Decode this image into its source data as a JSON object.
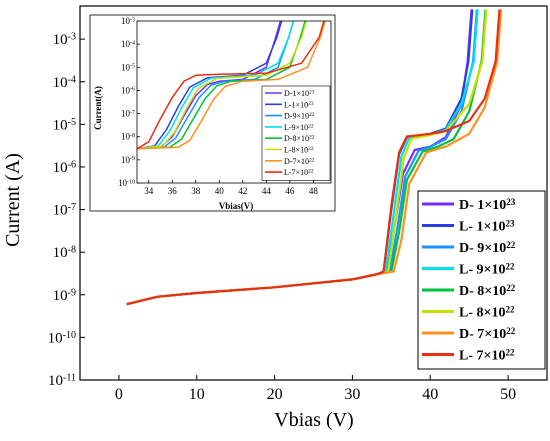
{
  "chart_data": [
    {
      "type": "line",
      "xlabel": "Vbias (V)",
      "ylabel": "Current (A)",
      "xlim": [
        -5,
        55
      ],
      "ylim": [
        1e-11,
        0.006
      ],
      "y_scale": "log",
      "x_ticks": [
        0,
        10,
        20,
        30,
        40,
        50
      ],
      "x_tick_labels": [
        "0",
        "10",
        "20",
        "30",
        "40",
        "50"
      ],
      "y_ticks": [
        1e-11,
        1e-10,
        1e-09,
        1e-08,
        1e-07,
        1e-06,
        1e-05,
        0.0001,
        0.001
      ],
      "y_tick_exponents": [
        "-11",
        "-10",
        "-9",
        "-8",
        "-7",
        "-6",
        "-5",
        "-4",
        "-3"
      ],
      "legend_position": "right",
      "series": [
        {
          "name": "D- 1×10",
          "exp": "23",
          "color": "#7a2cff",
          "x": [
            1,
            5,
            10,
            20,
            30,
            33,
            34.5,
            35.5,
            36.5,
            38,
            40,
            42,
            44,
            44.8,
            45.3
          ],
          "y": [
            6e-10,
            9e-10,
            1.1e-09,
            1.5e-09,
            2.3e-09,
            3e-09,
            3.5e-09,
            5e-08,
            7e-07,
            2.5e-06,
            3e-06,
            5e-06,
            3e-05,
            0.0003,
            0.005
          ]
        },
        {
          "name": "L- 1×10",
          "exp": "23",
          "color": "#2a40e0",
          "x": [
            1,
            5,
            10,
            20,
            30,
            33,
            34,
            35,
            36,
            37,
            40,
            42,
            44,
            44.9,
            45.4
          ],
          "y": [
            6e-10,
            9e-10,
            1.1e-09,
            1.5e-09,
            2.3e-09,
            3e-09,
            3.5e-09,
            1e-07,
            2e-06,
            5e-06,
            6e-06,
            8e-06,
            4e-05,
            0.0003,
            0.005
          ]
        },
        {
          "name": "D- 9×10",
          "exp": "22",
          "color": "#1e90ff",
          "x": [
            1,
            5,
            10,
            20,
            30,
            33,
            34.8,
            35.8,
            36.8,
            38.5,
            40,
            42,
            44,
            45.5,
            46
          ],
          "y": [
            6e-10,
            9e-10,
            1.1e-09,
            1.5e-09,
            2.3e-09,
            3e-09,
            3.5e-09,
            4e-08,
            6e-07,
            2.4e-06,
            3e-06,
            4.5e-06,
            2e-05,
            0.0003,
            0.005
          ]
        },
        {
          "name": "L- 9×10",
          "exp": "22",
          "color": "#00e0e8",
          "x": [
            1,
            5,
            10,
            20,
            30,
            33,
            34.3,
            35.3,
            36.3,
            37.3,
            40,
            42,
            44,
            45.6,
            46.1
          ],
          "y": [
            6e-10,
            9e-10,
            1.1e-09,
            1.5e-09,
            2.3e-09,
            3e-09,
            3.5e-09,
            8e-08,
            1.8e-06,
            4.8e-06,
            5.8e-06,
            7.5e-06,
            3e-05,
            0.0003,
            0.005
          ]
        },
        {
          "name": "D- 8×10",
          "exp": "22",
          "color": "#00c040",
          "x": [
            1,
            5,
            10,
            20,
            30,
            33,
            35,
            36,
            37,
            39,
            41,
            43,
            45,
            46.6,
            47.1
          ],
          "y": [
            6e-10,
            9e-10,
            1.1e-09,
            1.5e-09,
            2.3e-09,
            3e-09,
            3.5e-09,
            3e-08,
            5e-07,
            2.3e-06,
            3e-06,
            4.5e-06,
            2e-05,
            0.0003,
            0.005
          ]
        },
        {
          "name": "L- 8×10",
          "exp": "22",
          "color": "#c8e000",
          "x": [
            1,
            5,
            10,
            20,
            30,
            33,
            34.6,
            35.6,
            36.6,
            37.6,
            40,
            42,
            45,
            46.7,
            47.2
          ],
          "y": [
            6e-10,
            9e-10,
            1.1e-09,
            1.5e-09,
            2.3e-09,
            3e-09,
            3.5e-09,
            7e-08,
            1.6e-06,
            4.6e-06,
            5.6e-06,
            7e-06,
            3e-05,
            0.0003,
            0.005
          ]
        },
        {
          "name": "D- 7×10",
          "exp": "22",
          "color": "#ff9020",
          "x": [
            1,
            5,
            10,
            20,
            30,
            33,
            35.3,
            36.3,
            37.3,
            39.5,
            42,
            45,
            47,
            48.6,
            49.1
          ],
          "y": [
            6e-10,
            9e-10,
            1.1e-09,
            1.5e-09,
            2.3e-09,
            3e-09,
            3.5e-09,
            2e-08,
            4e-07,
            2.2e-06,
            3e-06,
            6e-06,
            2.5e-05,
            0.0003,
            0.005
          ]
        },
        {
          "name": "L- 7×10",
          "exp": "22",
          "color": "#e83010",
          "x": [
            1,
            5,
            10,
            20,
            30,
            33,
            34,
            35,
            36,
            37,
            40,
            42,
            45,
            47,
            48.4,
            48.9
          ],
          "y": [
            6e-10,
            9e-10,
            1.1e-09,
            1.5e-09,
            2.3e-09,
            3e-09,
            3.5e-09,
            1.2e-07,
            2.2e-06,
            5.2e-06,
            6e-06,
            7e-06,
            1.2e-05,
            4e-05,
            0.0003,
            0.005
          ]
        }
      ]
    },
    {
      "type": "line",
      "xlabel": "Vbias(V)",
      "ylabel": "Current(A)",
      "xlim": [
        33,
        49.5
      ],
      "ylim": [
        1e-10,
        0.001
      ],
      "y_scale": "log",
      "x_ticks": [
        34,
        36,
        38,
        40,
        42,
        44,
        46,
        48
      ],
      "x_tick_labels": [
        "34",
        "36",
        "38",
        "40",
        "42",
        "44",
        "46",
        "48"
      ],
      "y_ticks": [
        1e-10,
        1e-09,
        1e-08,
        1e-07,
        1e-06,
        1e-05,
        0.0001,
        0.001
      ],
      "y_tick_exponents": [
        "-10",
        "-9",
        "-8",
        "-7",
        "-6",
        "-5",
        "-4",
        "-3"
      ],
      "legend_position": "right",
      "series": [
        {
          "name": "D-1×10",
          "exp": "23",
          "color": "#7a2cff",
          "x": [
            33,
            35,
            36,
            37,
            38,
            39,
            40,
            42,
            44,
            44.8,
            45.2
          ],
          "y": [
            3e-09,
            3.5e-09,
            1e-08,
            8e-08,
            6e-07,
            1.8e-06,
            2.5e-06,
            3e-06,
            1e-05,
            0.0002,
            0.001
          ]
        },
        {
          "name": "L-1×10",
          "exp": "23",
          "color": "#2a40e0",
          "x": [
            33,
            34.5,
            35.5,
            36.5,
            37.5,
            39,
            42,
            44,
            44.9,
            45.3
          ],
          "y": [
            3e-09,
            4e-09,
            2e-08,
            2e-07,
            1.4e-06,
            3.5e-06,
            4.5e-06,
            1.5e-05,
            0.0002,
            0.001
          ]
        },
        {
          "name": "D-9×10",
          "exp": "22",
          "color": "#1e90ff",
          "x": [
            33,
            35.3,
            36.3,
            37.3,
            38.3,
            39.3,
            40.5,
            43,
            45,
            45.9,
            46.3
          ],
          "y": [
            3e-09,
            3.5e-09,
            9e-09,
            7e-08,
            5e-07,
            1.7e-06,
            2.5e-06,
            3e-06,
            1e-05,
            0.0002,
            0.001
          ]
        },
        {
          "name": "L-9×10",
          "exp": "22",
          "color": "#00e0e8",
          "x": [
            33,
            34.8,
            35.8,
            36.8,
            37.8,
            39.3,
            43,
            45,
            45.9,
            46.3
          ],
          "y": [
            3e-09,
            4e-09,
            1.8e-08,
            1.8e-07,
            1.3e-06,
            3.4e-06,
            4.5e-06,
            1.5e-05,
            0.0002,
            0.001
          ]
        },
        {
          "name": "D-8×10",
          "exp": "22",
          "color": "#00c040",
          "x": [
            33,
            35.8,
            36.8,
            37.8,
            38.8,
            39.8,
            41,
            44,
            46,
            46.9,
            47.3
          ],
          "y": [
            3e-09,
            3.5e-09,
            8e-09,
            6e-08,
            4.5e-07,
            1.6e-06,
            2.5e-06,
            3e-06,
            1e-05,
            0.0002,
            0.001
          ]
        },
        {
          "name": "L-8×10",
          "exp": "22",
          "color": "#c8e000",
          "x": [
            33,
            35.2,
            36.2,
            37.2,
            38.2,
            39.8,
            44,
            46,
            47,
            47.4
          ],
          "y": [
            3e-09,
            4e-09,
            1.6e-08,
            1.6e-07,
            1.2e-06,
            3.3e-06,
            4.5e-06,
            1.5e-05,
            0.0002,
            0.001
          ]
        },
        {
          "name": "D-7×10",
          "exp": "22",
          "color": "#ff9020",
          "x": [
            33,
            36.5,
            37.5,
            38.5,
            39.5,
            40.5,
            42,
            45,
            47.5,
            48.6,
            49
          ],
          "y": [
            3e-09,
            3.5e-09,
            7e-09,
            5e-08,
            4e-07,
            1.5e-06,
            2.5e-06,
            3e-06,
            1e-05,
            0.0002,
            0.001
          ]
        },
        {
          "name": "L-7×10",
          "exp": "22",
          "color": "#e83010",
          "x": [
            33,
            34,
            35,
            36,
            37,
            38,
            40,
            44,
            47,
            48.5,
            48.9
          ],
          "y": [
            3e-09,
            6e-09,
            6e-08,
            5e-07,
            2.5e-06,
            4.5e-06,
            5e-06,
            5.5e-06,
            1.5e-05,
            0.0002,
            0.001
          ]
        }
      ]
    }
  ]
}
